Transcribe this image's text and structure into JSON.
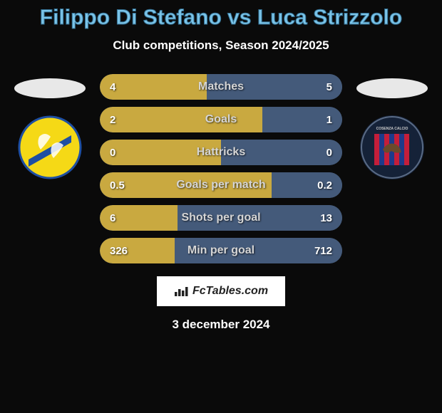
{
  "header": {
    "player1": "Filippo Di Stefano",
    "vs": "vs",
    "player2": "Luca Strizzolo",
    "title_color": "#7bc4e8",
    "subtitle": "Club competitions, Season 2024/2025"
  },
  "teams": {
    "left": {
      "name": "Frosinone",
      "badge_bg": "#f5d916",
      "badge_accent": "#1e4fa3"
    },
    "right": {
      "name": "Cosenza",
      "badge_bg": "#152238",
      "badge_stripes": [
        "#c41e3a",
        "#1e3a8a"
      ]
    }
  },
  "stats": {
    "left_color": "#c9a940",
    "right_color": "#445a7a",
    "rows": [
      {
        "label": "Matches",
        "left": "4",
        "right": "5",
        "left_pct": 44,
        "right_pct": 56
      },
      {
        "label": "Goals",
        "left": "2",
        "right": "1",
        "left_pct": 67,
        "right_pct": 33
      },
      {
        "label": "Hattricks",
        "left": "0",
        "right": "0",
        "left_pct": 50,
        "right_pct": 50
      },
      {
        "label": "Goals per match",
        "left": "0.5",
        "right": "0.2",
        "left_pct": 71,
        "right_pct": 29
      },
      {
        "label": "Shots per goal",
        "left": "6",
        "right": "13",
        "left_pct": 32,
        "right_pct": 68
      },
      {
        "label": "Min per goal",
        "left": "326",
        "right": "712",
        "left_pct": 31,
        "right_pct": 69
      }
    ]
  },
  "footer": {
    "brand": "FcTables.com",
    "date": "3 december 2024"
  }
}
